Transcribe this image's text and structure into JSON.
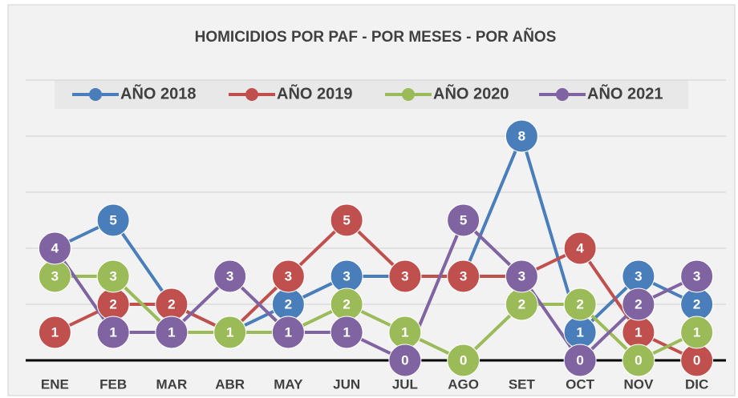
{
  "chart_data": {
    "type": "line",
    "title": "HOMICIDIOS POR PAF - POR MESES - POR AÑOS",
    "categories": [
      "ENE",
      "FEB",
      "MAR",
      "ABR",
      "MAY",
      "JUN",
      "JUL",
      "AGO",
      "SET",
      "OCT",
      "NOV",
      "DIC"
    ],
    "series": [
      {
        "name": "AÑO 2018",
        "color": "#4a7ebb",
        "values": [
          4,
          5,
          2,
          1,
          2,
          3,
          3,
          3,
          8,
          1,
          3,
          2
        ]
      },
      {
        "name": "AÑO 2019",
        "color": "#c0504d",
        "values": [
          1,
          2,
          2,
          1,
          3,
          5,
          3,
          3,
          3,
          4,
          1,
          0
        ]
      },
      {
        "name": "AÑO 2020",
        "color": "#9bbb59",
        "values": [
          3,
          3,
          1,
          1,
          1,
          2,
          1,
          0,
          2,
          2,
          0,
          1
        ]
      },
      {
        "name": "AÑO 2021",
        "color": "#8064a2",
        "values": [
          4,
          1,
          1,
          3,
          1,
          1,
          0,
          5,
          3,
          0,
          2,
          3
        ]
      }
    ],
    "ylim": [
      0,
      10
    ],
    "yticks": [
      0,
      2,
      4,
      6,
      8,
      10
    ],
    "grid": true,
    "legend": "top"
  }
}
